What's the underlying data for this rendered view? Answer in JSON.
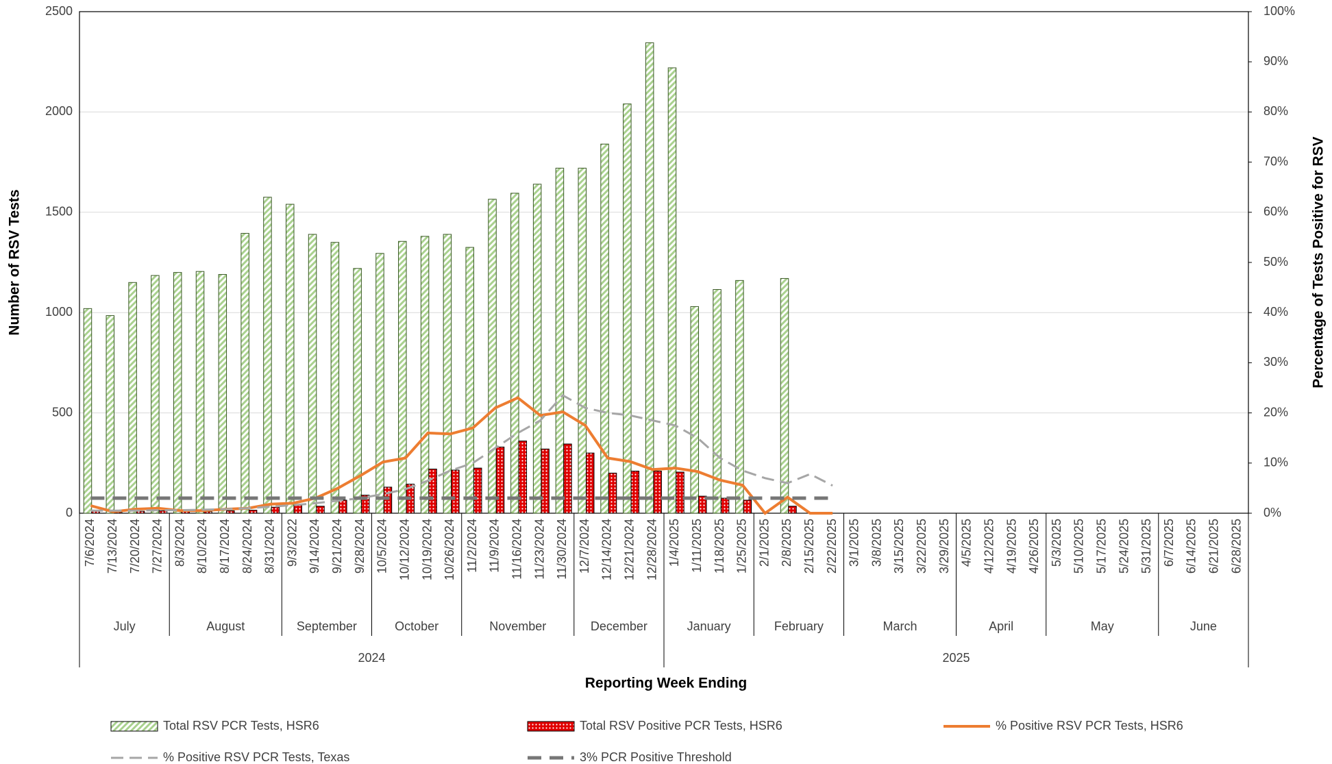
{
  "chart_data": {
    "type": "bar-line",
    "x_title": "Reporting Week Ending",
    "y_title": "Number of RSV Tests",
    "y2_title": "Percentage of Tests Positive for RSV",
    "categories": [
      "7/6/2024",
      "7/13/2024",
      "7/20/2024",
      "7/27/2024",
      "8/3/2024",
      "8/10/2024",
      "8/17/2024",
      "8/24/2024",
      "8/31/2024",
      "9/3/2022",
      "9/14/2024",
      "9/21/2024",
      "9/28/2024",
      "10/5/2024",
      "10/12/2024",
      "10/19/2024",
      "10/26/2024",
      "11/2/2024",
      "11/9/2024",
      "11/16/2024",
      "11/23/2024",
      "11/30/2024",
      "12/7/2024",
      "12/14/2024",
      "12/21/2024",
      "12/28/2024",
      "1/4/2025",
      "1/11/2025",
      "1/18/2025",
      "1/25/2025",
      "2/1/2025",
      "2/8/2025",
      "2/15/2025",
      "2/22/2025",
      "3/1/2025",
      "3/8/2025",
      "3/15/2025",
      "3/22/2025",
      "3/29/2025",
      "4/5/2025",
      "4/12/2025",
      "4/19/2025",
      "4/26/2025",
      "5/3/2025",
      "5/10/2025",
      "5/17/2025",
      "5/24/2025",
      "5/31/2025",
      "6/7/2025",
      "6/14/2025",
      "6/21/2025",
      "6/28/2025"
    ],
    "months": [
      "July",
      "August",
      "September",
      "October",
      "November",
      "December",
      "January",
      "February",
      "March",
      "April",
      "May",
      "June"
    ],
    "years": [
      "2024",
      "2025"
    ],
    "ylim": [
      0,
      2500
    ],
    "yticks": [
      0,
      500,
      1000,
      1500,
      2000,
      2500
    ],
    "y2lim": [
      0,
      100
    ],
    "y2ticks": [
      {
        "value": 0,
        "label": "0%"
      },
      {
        "value": 10,
        "label": "10%"
      },
      {
        "value": 20,
        "label": "20%"
      },
      {
        "value": 30,
        "label": "30%"
      },
      {
        "value": 40,
        "label": "40%"
      },
      {
        "value": 50,
        "label": "50%"
      },
      {
        "value": 60,
        "label": "60%"
      },
      {
        "value": 70,
        "label": "70%"
      },
      {
        "value": 80,
        "label": "80%"
      },
      {
        "value": 90,
        "label": "90%"
      },
      {
        "value": 100,
        "label": "100%"
      }
    ],
    "grid": true,
    "legend": "bottom",
    "series": [
      {
        "name": "Total RSV PCR Tests, HSR6",
        "type": "bar",
        "pattern": "stripes",
        "color": "#a9d18e",
        "values": [
          1020,
          985,
          1150,
          1185,
          1200,
          1205,
          1190,
          1395,
          1575,
          1540,
          1390,
          1350,
          1220,
          1295,
          1355,
          1380,
          1390,
          1325,
          1565,
          1595,
          1640,
          1720,
          1720,
          1840,
          2040,
          2345,
          2220,
          1030,
          1115,
          1160,
          null,
          1170,
          null,
          null,
          null,
          null,
          null,
          null,
          null,
          null,
          null,
          null,
          null,
          null,
          null,
          null,
          null,
          null,
          null,
          null,
          null,
          null
        ]
      },
      {
        "name": "Total RSV Positive PCR Tests, HSR6",
        "type": "bar",
        "pattern": "dots",
        "color": "#e00000",
        "values": [
          10,
          5,
          10,
          12,
          10,
          8,
          12,
          15,
          30,
          40,
          35,
          65,
          90,
          130,
          145,
          220,
          215,
          225,
          330,
          360,
          320,
          345,
          300,
          200,
          210,
          210,
          205,
          85,
          75,
          65,
          null,
          35,
          null,
          null,
          null,
          null,
          null,
          null,
          null,
          null,
          null,
          null,
          null,
          null,
          null,
          null,
          null,
          null,
          null,
          null,
          null,
          null
        ]
      },
      {
        "name": "% Positive RSV PCR Tests, HSR6",
        "type": "line",
        "line_style": "solid",
        "axis": "y2",
        "color": "#ed7d31",
        "values": [
          1.5,
          0.3,
          0.8,
          1.0,
          0.5,
          0.5,
          0.8,
          1.0,
          1.8,
          2.0,
          3.0,
          5.0,
          7.5,
          10.2,
          11.0,
          16.0,
          15.8,
          17.0,
          21.0,
          23.0,
          19.5,
          20.2,
          17.5,
          11.0,
          10.3,
          8.7,
          9.0,
          8.3,
          6.6,
          5.6,
          0,
          3.2,
          0,
          0,
          null,
          null,
          null,
          null,
          null,
          null,
          null,
          null,
          null,
          null,
          null,
          null,
          null,
          null,
          null,
          null,
          null,
          null
        ]
      },
      {
        "name": "% Positive RSV PCR Tests, Texas",
        "type": "line",
        "line_style": "dashed",
        "axis": "y2",
        "color": "#a6a6a6",
        "values": [
          0.5,
          0.5,
          0.5,
          0.6,
          0.6,
          0.7,
          0.8,
          1.0,
          1.3,
          1.6,
          2.0,
          2.5,
          3.0,
          3.8,
          4.8,
          6.5,
          8.5,
          10,
          13,
          16,
          18.5,
          23.5,
          21,
          20,
          19.5,
          18.5,
          17.5,
          15,
          11,
          8.5,
          7,
          6,
          7.8,
          5.5,
          null,
          null,
          null,
          null,
          null,
          null,
          null,
          null,
          null,
          null,
          null,
          null,
          null,
          null,
          null,
          null,
          null,
          null
        ]
      },
      {
        "name": "3% PCR Positive Threshold",
        "type": "line",
        "line_style": "thick-dashed",
        "axis": "y2",
        "color": "#767676",
        "values": [
          3,
          3,
          3,
          3,
          3,
          3,
          3,
          3,
          3,
          3,
          3,
          3,
          3,
          3,
          3,
          3,
          3,
          3,
          3,
          3,
          3,
          3,
          3,
          3,
          3,
          3,
          3,
          3,
          3,
          3,
          3,
          3,
          3,
          3,
          null,
          null,
          null,
          null,
          null,
          null,
          null,
          null,
          null,
          null,
          null,
          null,
          null,
          null,
          null,
          null,
          null,
          null
        ]
      }
    ]
  }
}
